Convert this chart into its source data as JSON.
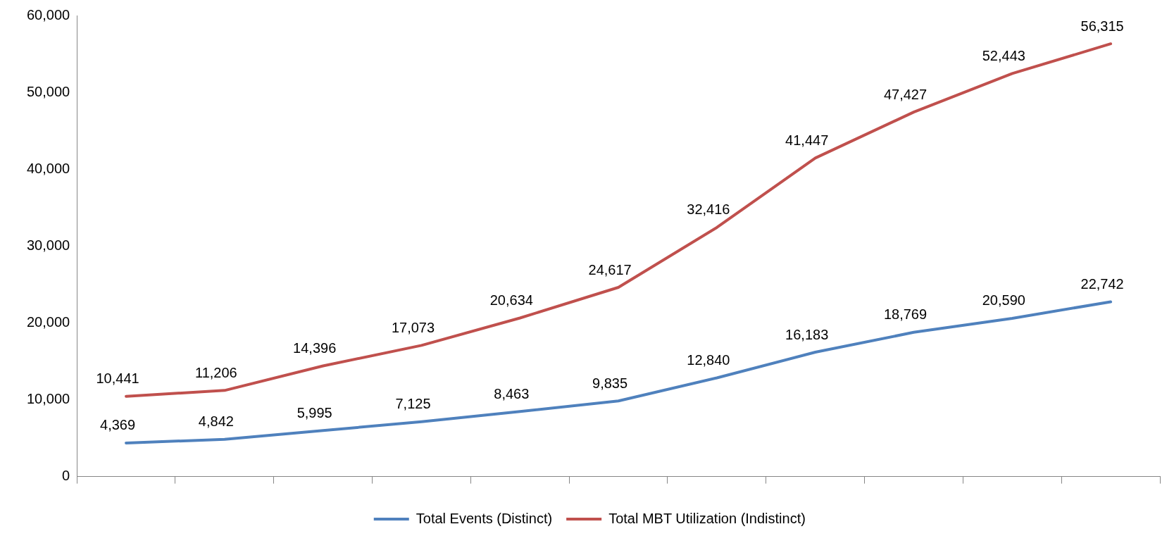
{
  "chart_data": {
    "type": "line",
    "categories": [
      null,
      null,
      null,
      null,
      null,
      null,
      null,
      null,
      null,
      null,
      null
    ],
    "series": [
      {
        "name": "Total Events (Distinct)",
        "color": "#4f81bd",
        "values": [
          4369,
          4842,
          5995,
          7125,
          8463,
          9835,
          12840,
          16183,
          18769,
          20590,
          22742
        ],
        "value_labels": [
          "4,369",
          "4,842",
          "5,995",
          "7,125",
          "8,463",
          "9,835",
          "12,840",
          "16,183",
          "18,769",
          "20,590",
          "22,742"
        ]
      },
      {
        "name": "Total MBT Utilization (Indistinct)",
        "color": "#c0504d",
        "values": [
          10441,
          11206,
          14396,
          17073,
          20634,
          24617,
          32416,
          41447,
          47427,
          52443,
          56315
        ],
        "value_labels": [
          "10,441",
          "11,206",
          "14,396",
          "17,073",
          "20,634",
          "24,617",
          "32,416",
          "41,447",
          "47,427",
          "52,443",
          "56,315"
        ]
      }
    ],
    "ylim": [
      0,
      60000
    ],
    "yticks": [
      {
        "value": 0,
        "label": "0"
      },
      {
        "value": 10000,
        "label": "10,000"
      },
      {
        "value": 20000,
        "label": "20,000"
      },
      {
        "value": 30000,
        "label": "30,000"
      },
      {
        "value": 40000,
        "label": "40,000"
      },
      {
        "value": 50000,
        "label": "50,000"
      },
      {
        "value": 60000,
        "label": "60,000"
      }
    ],
    "legend": "bottom",
    "marker": "none",
    "line_style": "solid"
  }
}
